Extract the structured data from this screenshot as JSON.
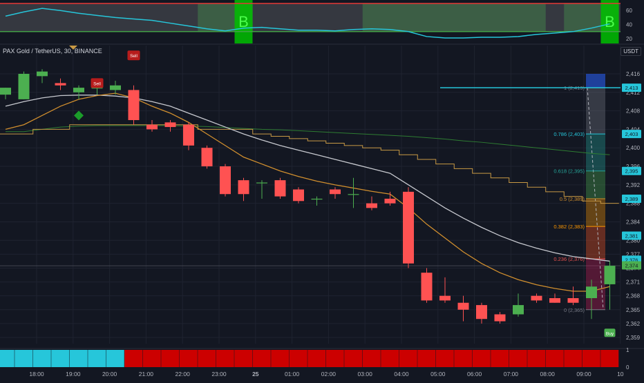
{
  "header": {
    "symbol_title": "PAX Gold / TetherUS, 30, BINANCE",
    "currency": "USDT"
  },
  "colors": {
    "background": "#131722",
    "grid": "#1f2330",
    "up": "#4caf50",
    "down": "#ff5252",
    "ema_fast": "#d18f2e",
    "sma_slow": "#c7c9cf",
    "step_line": "#c99a45",
    "ma_long": "#2e7d32",
    "rsi_line": "#26c6da",
    "rsi_band": "#808080",
    "buy_zone": "#4caf50",
    "signal_cyan": "#26c6da",
    "signal_red": "#cc0000",
    "fib_blue": "#26c6da"
  },
  "markers": {
    "buy_label": "B",
    "sell_label": "Sell"
  },
  "chart_data": [
    {
      "type": "candlestick",
      "name": "price",
      "x_ticks": [
        "18:00",
        "19:00",
        "20:00",
        "21:00",
        "22:00",
        "23:00",
        "25",
        "01:00",
        "02:00",
        "03:00",
        "04:00",
        "05:00",
        "06:00",
        "07:00",
        "08:00",
        "09:00",
        "10"
      ],
      "y_ticks": [
        2359,
        2362,
        2365,
        2368,
        2371,
        2374,
        2377,
        2380,
        2384,
        2388,
        2392,
        2396,
        2400,
        2404,
        2408,
        2412,
        2416
      ],
      "candles": [
        {
          "t": "17:00",
          "o": 2411.5,
          "h": 2413.0,
          "l": 2410.5,
          "c": 2413.0
        },
        {
          "t": "17:30",
          "o": 2410.5,
          "h": 2416.5,
          "l": 2410.5,
          "c": 2416.0
        },
        {
          "t": "18:00",
          "o": 2415.5,
          "h": 2417.0,
          "l": 2414.0,
          "c": 2416.5
        },
        {
          "t": "18:30",
          "o": 2414.0,
          "h": 2415.0,
          "l": 2412.5,
          "c": 2413.5
        },
        {
          "t": "19:00",
          "o": 2412.0,
          "h": 2413.5,
          "l": 2410.5,
          "c": 2413.0
        },
        {
          "t": "19:30",
          "o": 2413.0,
          "h": 2414.5,
          "l": 2411.5,
          "c": 2413.0
        },
        {
          "t": "20:00",
          "o": 2412.5,
          "h": 2414.5,
          "l": 2411.5,
          "c": 2413.5
        },
        {
          "t": "20:30",
          "o": 2412.5,
          "h": 2413.5,
          "l": 2405.0,
          "c": 2406.0
        },
        {
          "t": "21:00",
          "o": 2405.0,
          "h": 2406.0,
          "l": 2403.5,
          "c": 2404.0
        },
        {
          "t": "21:30",
          "o": 2405.5,
          "h": 2406.0,
          "l": 2403.5,
          "c": 2404.5
        },
        {
          "t": "22:00",
          "o": 2405.0,
          "h": 2405.5,
          "l": 2399.5,
          "c": 2400.5
        },
        {
          "t": "22:30",
          "o": 2400.0,
          "h": 2400.5,
          "l": 2395.5,
          "c": 2396.0
        },
        {
          "t": "23:00",
          "o": 2396.0,
          "h": 2396.5,
          "l": 2389.5,
          "c": 2390.0
        },
        {
          "t": "23:30",
          "o": 2393.0,
          "h": 2393.5,
          "l": 2388.5,
          "c": 2390.0
        },
        {
          "t": "00:00",
          "o": 2392.5,
          "h": 2393.0,
          "l": 2389.0,
          "c": 2392.5
        },
        {
          "t": "00:30",
          "o": 2393.0,
          "h": 2393.5,
          "l": 2389.0,
          "c": 2389.5
        },
        {
          "t": "01:00",
          "o": 2391.0,
          "h": 2391.5,
          "l": 2388.0,
          "c": 2388.5
        },
        {
          "t": "01:30",
          "o": 2389.0,
          "h": 2389.5,
          "l": 2387.5,
          "c": 2389.0
        },
        {
          "t": "02:00",
          "o": 2391.0,
          "h": 2391.5,
          "l": 2389.0,
          "c": 2390.0
        },
        {
          "t": "02:30",
          "o": 2390.0,
          "h": 2393.5,
          "l": 2387.0,
          "c": 2390.0
        },
        {
          "t": "03:00",
          "o": 2388.0,
          "h": 2389.5,
          "l": 2386.5,
          "c": 2387.0
        },
        {
          "t": "03:30",
          "o": 2389.0,
          "h": 2390.5,
          "l": 2387.5,
          "c": 2388.0
        },
        {
          "t": "04:00",
          "o": 2390.5,
          "h": 2391.5,
          "l": 2374.0,
          "c": 2375.0
        },
        {
          "t": "04:30",
          "o": 2373.0,
          "h": 2374.0,
          "l": 2366.5,
          "c": 2367.0
        },
        {
          "t": "05:00",
          "o": 2368.0,
          "h": 2372.0,
          "l": 2366.5,
          "c": 2367.0
        },
        {
          "t": "05:30",
          "o": 2366.5,
          "h": 2368.0,
          "l": 2362.5,
          "c": 2365.0
        },
        {
          "t": "06:00",
          "o": 2366.0,
          "h": 2366.5,
          "l": 2362.0,
          "c": 2363.0
        },
        {
          "t": "06:30",
          "o": 2364.0,
          "h": 2364.5,
          "l": 2362.0,
          "c": 2362.5
        },
        {
          "t": "07:00",
          "o": 2364.0,
          "h": 2368.5,
          "l": 2363.5,
          "c": 2366.0
        },
        {
          "t": "07:30",
          "o": 2368.0,
          "h": 2368.5,
          "l": 2366.5,
          "c": 2367.0
        },
        {
          "t": "08:00",
          "o": 2367.5,
          "h": 2368.5,
          "l": 2366.5,
          "c": 2366.5
        },
        {
          "t": "08:30",
          "o": 2367.5,
          "h": 2370.0,
          "l": 2366.0,
          "c": 2366.5
        },
        {
          "t": "09:00",
          "o": 2367.5,
          "h": 2371.5,
          "l": 2363.0,
          "c": 2370.0
        },
        {
          "t": "09:30",
          "o": 2370.5,
          "h": 2375.5,
          "l": 2365.0,
          "c": 2374.5
        }
      ],
      "ema_fast": [
        2404,
        2405,
        2407,
        2409,
        2410.5,
        2411.3,
        2411.8,
        2410.8,
        2409,
        2407.5,
        2405.5,
        2403,
        2400.5,
        2398,
        2396.5,
        2395,
        2393.8,
        2392.8,
        2392,
        2391.3,
        2390.6,
        2390,
        2387,
        2383.5,
        2380.5,
        2377.5,
        2375,
        2373,
        2371.5,
        2370.4,
        2369.6,
        2369,
        2369,
        2370
      ],
      "sma_slow": [
        2409,
        2410,
        2410.8,
        2411.3,
        2411.4,
        2411.4,
        2411.2,
        2410.8,
        2410,
        2409,
        2407.5,
        2406,
        2404.5,
        2403,
        2401.7,
        2400.5,
        2399.5,
        2398.5,
        2397.5,
        2396.5,
        2395.5,
        2394.5,
        2392,
        2389.5,
        2387,
        2384.8,
        2382.8,
        2381,
        2379.5,
        2378.3,
        2377.3,
        2376.5,
        2376,
        2375.5
      ],
      "step_line": [
        2403,
        2403,
        2404,
        2404,
        2405,
        2405,
        2405,
        2405,
        2405,
        2405,
        2405,
        2404,
        2404,
        2404,
        2403,
        2402.5,
        2402,
        2401.5,
        2401,
        2400.5,
        2400,
        2399.5,
        2398.5,
        2397.5,
        2396.5,
        2395.5,
        2394.5,
        2393.5,
        2392.5,
        2391.5,
        2390.5,
        2389.5,
        2388.5,
        2388
      ],
      "ma_long": [
        2403.5,
        2403.5,
        2404,
        2404.5,
        2404.7,
        2404.8,
        2404.8,
        2404.8,
        2404.8,
        2404.8,
        2404.7,
        2404.6,
        2404.4,
        2404.2,
        2404,
        2403.9,
        2403.7,
        2403.5,
        2403.3,
        2403.1,
        2402.9,
        2402.7,
        2402.5,
        2402.2,
        2401.9,
        2401.5,
        2401.2,
        2400.8,
        2400.4,
        2400,
        2399.6,
        2399.2,
        2398.8,
        2398.5
      ],
      "price_labels": [
        {
          "text": "2,413",
          "value": 2413.0,
          "color": "#26c6da"
        },
        {
          "text": "2,403",
          "value": 2403.0,
          "color": "#26c6da"
        },
        {
          "text": "2,395",
          "value": 2395.0,
          "color": "#26c6da"
        },
        {
          "text": "2,389",
          "value": 2389.0,
          "color": "#26c6da"
        },
        {
          "text": "2,381",
          "value": 2381.0,
          "color": "#26c6da"
        },
        {
          "text": "2,376",
          "value": 2375.8,
          "color": "#26c6da"
        },
        {
          "text": "2,374",
          "value": 2374.6,
          "color": "#4caf50"
        }
      ],
      "fib_levels": [
        {
          "label": "1 (2,413)",
          "value": 2413,
          "color": "#787b86"
        },
        {
          "label": "0.786 (2,403)",
          "value": 2403,
          "color": "#26c6da"
        },
        {
          "label": "0.618 (2,395)",
          "value": 2395,
          "color": "#26a69a"
        },
        {
          "label": "0.5 (2,389)",
          "value": 2389,
          "color": "#d18f2e"
        },
        {
          "label": "0.382 (2,383)",
          "value": 2383,
          "color": "#ff9800"
        },
        {
          "label": "0.236 (2,376)",
          "value": 2376,
          "color": "#ef5350"
        },
        {
          "label": "0 (2,365)",
          "value": 2365,
          "color": "#787b86"
        }
      ],
      "buy_signals": [
        {
          "t": "19:00",
          "value": 2407,
          "label": "Buy"
        },
        {
          "t": "09:30",
          "value": 2360,
          "label": "Buy"
        }
      ],
      "sell_signals": [
        {
          "t": "19:30",
          "value": 2414,
          "label": "Sell"
        },
        {
          "t": "20:30",
          "value": 2420,
          "label": "Sell"
        }
      ]
    },
    {
      "type": "line",
      "name": "rsi",
      "y_ticks": [
        20,
        40,
        60
      ],
      "ylim": [
        20,
        70
      ],
      "band": [
        30,
        70
      ],
      "values": [
        52,
        58,
        63,
        60,
        56,
        53,
        50,
        48,
        46,
        42,
        38,
        34,
        31,
        35,
        36,
        34,
        32,
        32,
        31,
        33,
        34,
        33,
        30,
        23,
        21,
        21,
        22,
        22,
        23,
        26,
        28,
        30,
        35,
        41
      ],
      "buy_zones": [
        {
          "from": "22:30",
          "to": "23:30",
          "label": "B"
        },
        {
          "from": "03:00",
          "to": "07:30",
          "label": ""
        },
        {
          "from": "08:30",
          "to": "09:30",
          "label": "B"
        }
      ]
    },
    {
      "type": "heatmap",
      "name": "signal_bar",
      "y_ticks": [
        0,
        1
      ],
      "states": [
        "up",
        "up",
        "up",
        "up",
        "up",
        "up",
        "up",
        "down",
        "down",
        "down",
        "down",
        "down",
        "down",
        "down",
        "down",
        "down",
        "down",
        "down",
        "down",
        "down",
        "down",
        "down",
        "down",
        "down",
        "down",
        "down",
        "down",
        "down",
        "down",
        "down",
        "down",
        "down",
        "down",
        "down"
      ]
    }
  ]
}
